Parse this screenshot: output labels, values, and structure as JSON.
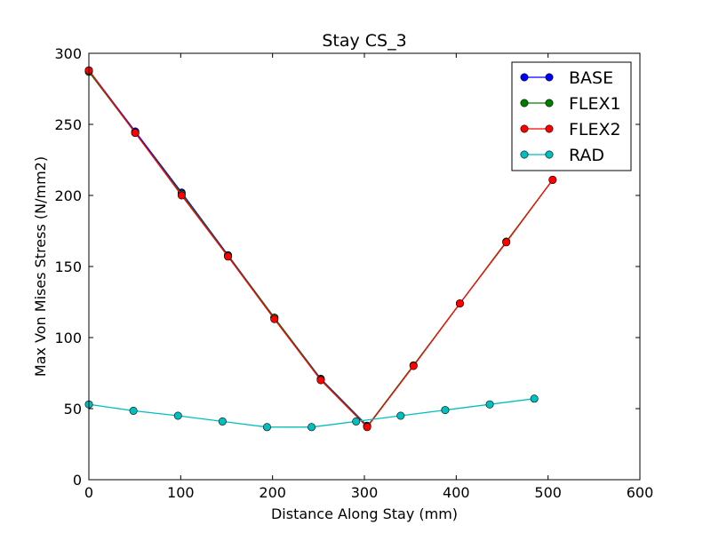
{
  "chart_data": {
    "type": "line",
    "title": "Stay CS_3",
    "xlabel": "Distance Along Stay (mm)",
    "ylabel": "Max Von Mises Stress (N/mm2)",
    "xlim": [
      0,
      600
    ],
    "ylim": [
      0,
      300
    ],
    "x_ticks": [
      0,
      100,
      200,
      300,
      400,
      500,
      600
    ],
    "y_ticks": [
      0,
      50,
      100,
      150,
      200,
      250,
      300
    ],
    "grid": false,
    "legend_position": "top-right",
    "series": [
      {
        "name": "BASE",
        "color": "#0000ff",
        "x": [
          0,
          50.5,
          101,
          151.5,
          202,
          252.5,
          303
        ],
        "y": [
          288,
          245,
          202,
          158,
          114,
          71,
          38
        ]
      },
      {
        "name": "FLEX1",
        "color": "#008000",
        "x": [
          0,
          50.5,
          101,
          151.5,
          202,
          252.5,
          303,
          353.5,
          404,
          454.5,
          505
        ],
        "y": [
          287,
          244,
          201,
          157.5,
          114,
          70.5,
          37.5,
          80.5,
          124,
          167.5,
          211
        ]
      },
      {
        "name": "FLEX2",
        "color": "#ff0000",
        "x": [
          0,
          50.5,
          101,
          151.5,
          202,
          252.5,
          303,
          353.5,
          404,
          454.5,
          505
        ],
        "y": [
          288,
          244,
          200,
          157,
          113,
          70,
          37,
          80,
          124,
          167,
          211
        ]
      },
      {
        "name": "RAD",
        "color": "#00bfbf",
        "x": [
          0,
          48.5,
          97,
          145.5,
          194,
          242.5,
          291,
          339.5,
          388,
          436.5,
          485
        ],
        "y": [
          53,
          48.5,
          45,
          41,
          37,
          37,
          41,
          45,
          49,
          53,
          57
        ]
      }
    ]
  }
}
